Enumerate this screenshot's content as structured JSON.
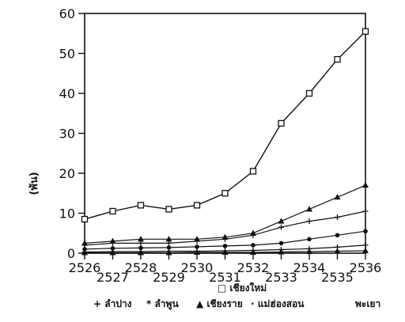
{
  "chart_data": {
    "type": "line",
    "title": "",
    "xlabel": "",
    "ylabel": "(พัน)",
    "x": [
      "2526",
      "2527",
      "2528",
      "2529",
      "2530",
      "2531",
      "2532",
      "2533",
      "2534",
      "2535",
      "2536"
    ],
    "ylim": [
      0,
      60
    ],
    "yticks": [
      0,
      10,
      20,
      30,
      40,
      50,
      60
    ],
    "grid": false,
    "legend_position": "bottom",
    "series": [
      {
        "name": "เชียงใหม่",
        "marker": "square",
        "color": "#111111",
        "values": [
          8.5,
          10.5,
          12,
          11,
          12,
          15,
          20.5,
          32.5,
          40,
          48.5,
          55.5
        ]
      },
      {
        "name": "ลำปาง",
        "marker": "triangle",
        "color": "#111111",
        "values": [
          2.5,
          3,
          3.5,
          3.5,
          3.5,
          4,
          5,
          8,
          11,
          14,
          17
        ]
      },
      {
        "name": "ลำพูน",
        "marker": "plus",
        "color": "#111111",
        "values": [
          2,
          2.5,
          2.5,
          2.5,
          3,
          3.5,
          4.5,
          6.5,
          8,
          9,
          10.5
        ]
      },
      {
        "name": "เชียงราย",
        "marker": "dot",
        "color": "#111111",
        "values": [
          1,
          1.2,
          1.3,
          1.4,
          1.6,
          1.8,
          2,
          2.5,
          3.5,
          4.5,
          5.5
        ]
      },
      {
        "name": "แม่ฮ่องสอน",
        "marker": "plus",
        "color": "#111111",
        "values": [
          0.3,
          0.4,
          0.4,
          0.5,
          0.5,
          0.6,
          0.7,
          0.9,
          1.1,
          1.5,
          2
        ]
      },
      {
        "name": "พะเยา",
        "marker": "triangle",
        "color": "#111111",
        "values": [
          0.1,
          0.1,
          0.1,
          0.1,
          0.2,
          0.2,
          0.2,
          0.3,
          0.4,
          0.5,
          0.6
        ]
      }
    ],
    "legend": {
      "row1": [
        {
          "symbol": "□",
          "label": "เชียงใหม่"
        }
      ],
      "row2": [
        {
          "symbol": "+",
          "label": "ลำปาง"
        },
        {
          "symbol": "*",
          "label": "ลำพูน"
        },
        {
          "symbol": "▲",
          "label": "เชียงราย"
        },
        {
          "symbol": "·",
          "label": "แม่ฮ่องสอน"
        },
        {
          "symbol": "",
          "label": "พะเยา"
        }
      ]
    }
  }
}
